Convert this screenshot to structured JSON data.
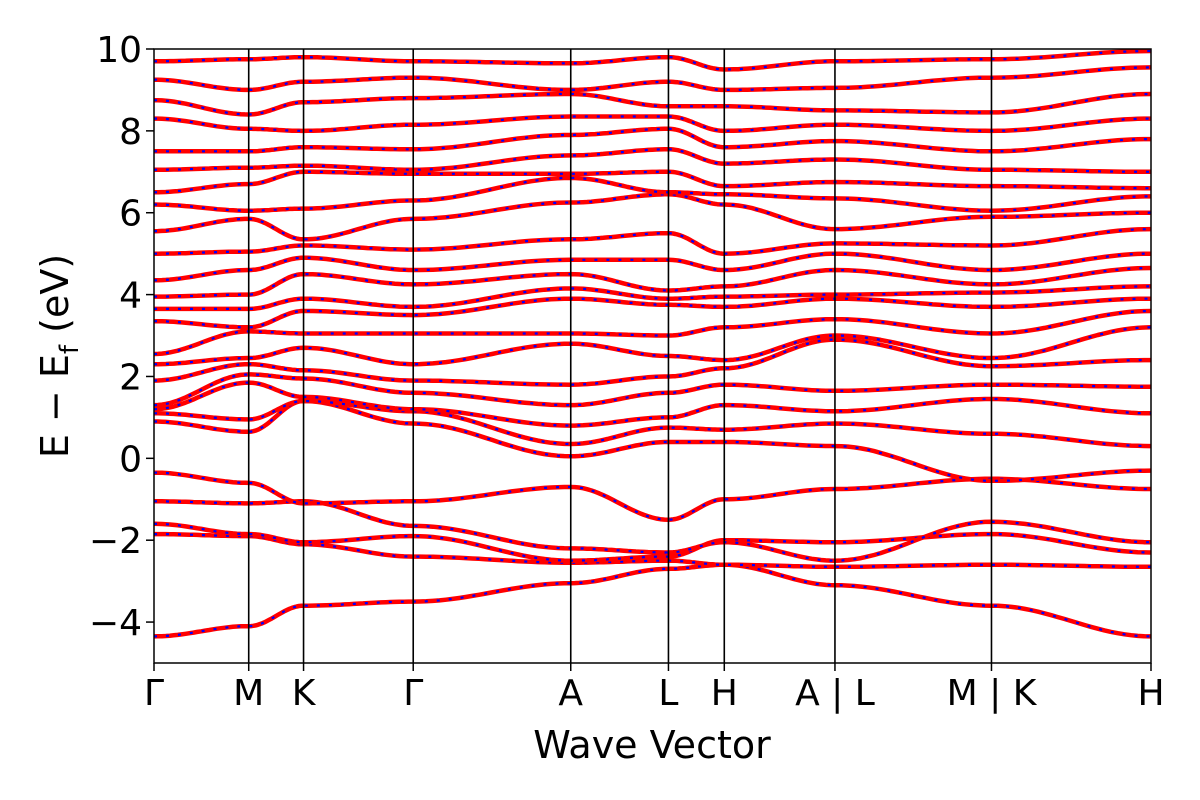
{
  "chart_data": {
    "type": "line",
    "title": "",
    "xlabel": "Wave Vector",
    "ylabel": "E − E",
    "ylabel_subscript": "f",
    "ylabel_unit": "(eV)",
    "ylim": [
      -5,
      10
    ],
    "yticks": [
      {
        "value": 10,
        "label": "10"
      },
      {
        "value": 8,
        "label": "8"
      },
      {
        "value": 6,
        "label": "6"
      },
      {
        "value": 4,
        "label": "4"
      },
      {
        "value": 2,
        "label": "2"
      },
      {
        "value": 0,
        "label": "0"
      },
      {
        "value": -2,
        "label": "−2"
      },
      {
        "value": -4,
        "label": "−4"
      }
    ],
    "grid": false,
    "legend": "none",
    "xlim": [
      0,
      5.0
    ],
    "kpoints": [
      {
        "k": 0.0,
        "label": "Γ"
      },
      {
        "k": 0.475,
        "label": "M"
      },
      {
        "k": 0.75,
        "label": "K"
      },
      {
        "k": 1.3,
        "label": "Γ"
      },
      {
        "k": 2.09,
        "label": "A"
      },
      {
        "k": 2.58,
        "label": "L"
      },
      {
        "k": 2.86,
        "label": "H"
      },
      {
        "k": 3.415,
        "label": "A | L"
      },
      {
        "k": 4.2,
        "label": "M | K"
      },
      {
        "k": 5.0,
        "label": "H"
      }
    ],
    "colors": {
      "series_a": "#ff0000",
      "series_b": "#0000ff",
      "vlines": "#000000"
    },
    "bands": [
      [
        -4.35,
        -4.1,
        -3.6,
        -3.5,
        -3.05,
        -2.7,
        -2.6,
        -3.1,
        -3.6,
        -4.35
      ],
      [
        -1.85,
        -1.9,
        -2.1,
        -2.4,
        -2.55,
        -2.5,
        -2.6,
        -2.65,
        -2.6,
        -2.65
      ],
      [
        -1.6,
        -1.85,
        -2.05,
        -1.9,
        -2.5,
        -2.4,
        -2.0,
        -2.05,
        -1.85,
        -2.3
      ],
      [
        -1.05,
        -1.1,
        -1.05,
        -1.65,
        -2.2,
        -2.3,
        -2.05,
        -2.5,
        -1.55,
        -2.05
      ],
      [
        -0.35,
        -0.6,
        -1.1,
        -1.05,
        -0.7,
        -1.5,
        -1.0,
        -0.75,
        -0.5,
        -0.75
      ],
      [
        0.9,
        0.65,
        1.4,
        0.85,
        0.05,
        0.4,
        0.4,
        0.3,
        -0.55,
        -0.3
      ],
      [
        1.1,
        0.95,
        1.4,
        1.15,
        0.35,
        0.75,
        0.7,
        0.85,
        0.6,
        0.3
      ],
      [
        1.2,
        1.85,
        1.5,
        1.2,
        0.8,
        1.0,
        1.3,
        1.15,
        1.45,
        1.1
      ],
      [
        1.3,
        2.05,
        1.95,
        1.6,
        1.3,
        1.6,
        1.8,
        1.65,
        1.8,
        1.75
      ],
      [
        1.9,
        2.3,
        2.15,
        1.9,
        1.8,
        2.0,
        2.2,
        2.9,
        2.25,
        2.4
      ],
      [
        2.3,
        2.45,
        2.7,
        2.3,
        2.8,
        2.5,
        2.4,
        3.0,
        2.45,
        3.2
      ],
      [
        2.55,
        3.1,
        3.05,
        3.05,
        3.05,
        3.0,
        3.2,
        3.4,
        3.05,
        3.6
      ],
      [
        3.35,
        3.2,
        3.6,
        3.5,
        3.9,
        3.75,
        3.7,
        3.9,
        3.7,
        3.9
      ],
      [
        3.65,
        3.65,
        3.9,
        3.7,
        4.15,
        3.9,
        3.95,
        4.0,
        4.05,
        4.2
      ],
      [
        3.95,
        4.0,
        4.5,
        4.25,
        4.5,
        4.1,
        4.2,
        4.6,
        4.25,
        4.65
      ],
      [
        4.35,
        4.6,
        4.9,
        4.6,
        4.85,
        4.85,
        4.6,
        5.0,
        4.6,
        5.0
      ],
      [
        5.0,
        5.05,
        5.2,
        5.1,
        5.35,
        5.5,
        5.0,
        5.25,
        5.2,
        5.6
      ],
      [
        5.55,
        5.85,
        5.35,
        5.85,
        6.25,
        6.45,
        6.2,
        5.6,
        5.9,
        6.0
      ],
      [
        6.2,
        6.05,
        6.1,
        6.3,
        6.85,
        6.5,
        6.45,
        6.35,
        6.05,
        6.4
      ],
      [
        6.5,
        6.7,
        7.0,
        6.95,
        6.95,
        7.0,
        6.65,
        6.75,
        6.65,
        6.6
      ],
      [
        7.05,
        7.1,
        7.15,
        7.05,
        7.4,
        7.55,
        7.2,
        7.3,
        7.05,
        7.0
      ],
      [
        7.5,
        7.5,
        7.6,
        7.55,
        7.9,
        8.05,
        7.6,
        7.75,
        7.5,
        7.8
      ],
      [
        8.3,
        8.05,
        8.0,
        8.15,
        8.35,
        8.35,
        8.0,
        8.15,
        8.0,
        8.3
      ],
      [
        8.75,
        8.4,
        8.7,
        8.8,
        8.9,
        8.6,
        8.6,
        8.5,
        8.45,
        8.9
      ],
      [
        9.25,
        9.0,
        9.2,
        9.3,
        9.0,
        9.2,
        9.0,
        9.05,
        9.3,
        9.55
      ],
      [
        9.7,
        9.75,
        9.8,
        9.7,
        9.65,
        9.8,
        9.5,
        9.7,
        9.75,
        9.95
      ]
    ]
  }
}
